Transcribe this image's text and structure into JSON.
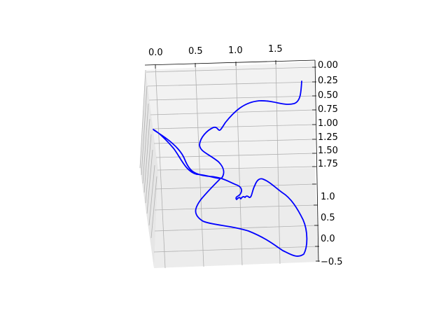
{
  "chart_data": {
    "type": "line",
    "projection": "3d",
    "title": "",
    "xlabel": "",
    "ylabel": "",
    "zlabel": "",
    "grid": true,
    "line_color": "#0000ff",
    "axes": {
      "x_ticks": [
        "0.0",
        "0.5",
        "1.0",
        "1.5"
      ],
      "y_ticks": [
        "0.00",
        "0.25",
        "0.50",
        "0.75",
        "1.00",
        "1.25",
        "1.50",
        "1.75"
      ],
      "z_ticks": [
        "1.0",
        "0.5",
        "0.0",
        "−0.5"
      ]
    }
  }
}
